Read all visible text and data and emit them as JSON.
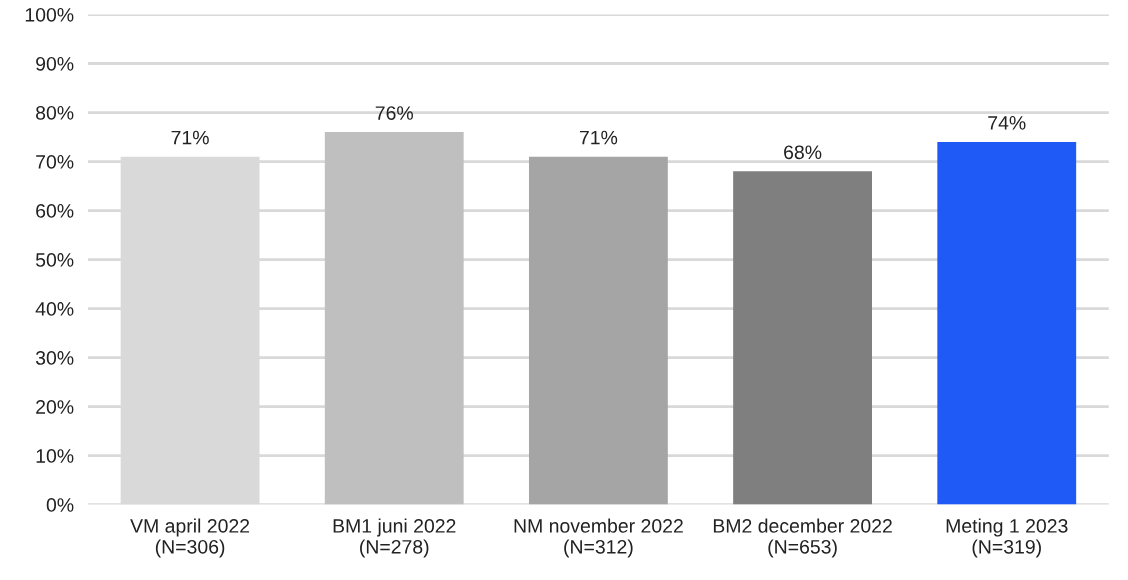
{
  "chart_data": {
    "type": "bar",
    "categories": [
      "VM april 2022\n(N=306)",
      "BM1 juni 2022\n(N=278)",
      "NM november 2022\n(N=312)",
      "BM2 december 2022\n(N=653)",
      "Meting 1 2023\n(N=319)"
    ],
    "values": [
      71,
      76,
      71,
      68,
      74
    ],
    "value_labels": [
      "71%",
      "76%",
      "71%",
      "68%",
      "74%"
    ],
    "colors": [
      "#d9d9d9",
      "#bfbfbf",
      "#a5a5a5",
      "#7f7f7f",
      "#1f5af6"
    ],
    "ylim": [
      0,
      100
    ],
    "yticks": [
      {
        "value": 0,
        "label": "0%"
      },
      {
        "value": 10,
        "label": "10%"
      },
      {
        "value": 20,
        "label": "20%"
      },
      {
        "value": 30,
        "label": "30%"
      },
      {
        "value": 40,
        "label": "40%"
      },
      {
        "value": 50,
        "label": "50%"
      },
      {
        "value": 60,
        "label": "60%"
      },
      {
        "value": 70,
        "label": "70%"
      },
      {
        "value": 80,
        "label": "80%"
      },
      {
        "value": 90,
        "label": "90%"
      },
      {
        "value": 100,
        "label": "100%"
      }
    ],
    "grid": "y"
  }
}
